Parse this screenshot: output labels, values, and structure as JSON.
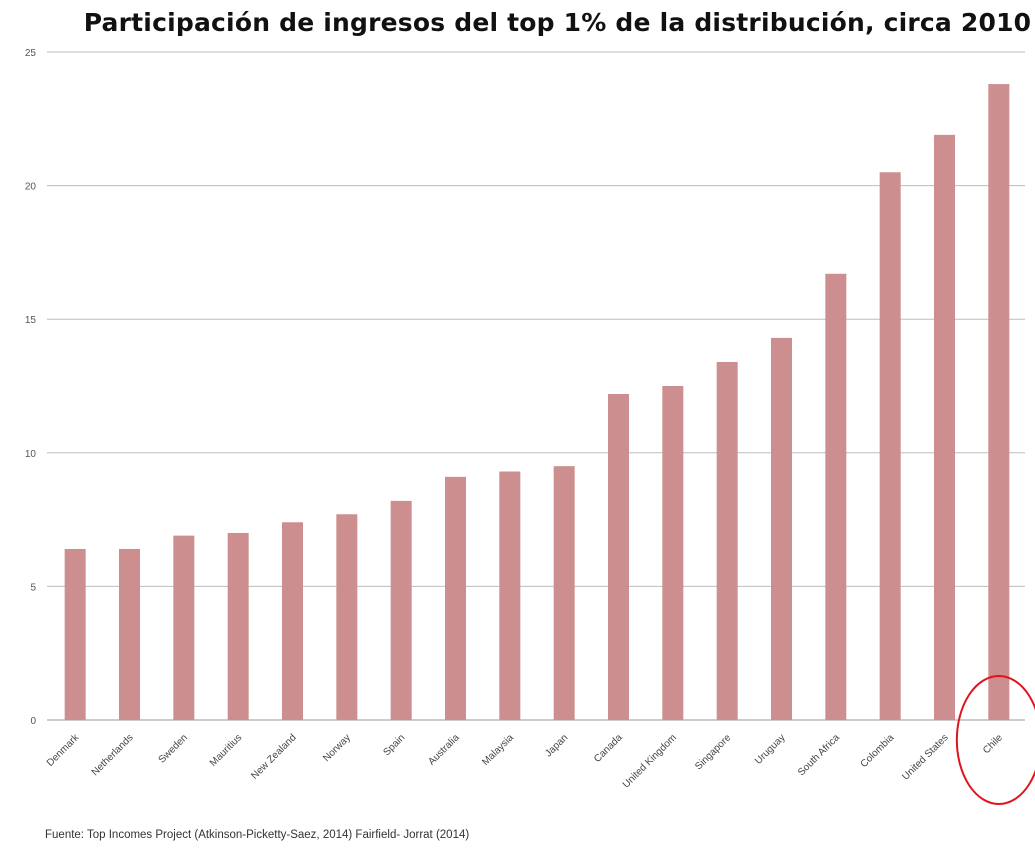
{
  "chart_data": {
    "type": "bar",
    "title": "Participación de ingresos del top 1% de la distribución, circa 2010",
    "xlabel": "",
    "ylabel": "",
    "ylim": [
      0,
      25
    ],
    "yticks": [
      0,
      5,
      10,
      15,
      20,
      25
    ],
    "grid": true,
    "legend": "none",
    "categories": [
      "Denmark",
      "Netherlands",
      "Sweden",
      "Mauritius",
      "New Zealand",
      "Norway",
      "Spain",
      "Australia",
      "Malaysia",
      "Japan",
      "Canada",
      "United Kingdom",
      "Singapore",
      "Uruguay",
      "South Africa",
      "Colombia",
      "United States",
      "Chile"
    ],
    "values": [
      6.4,
      6.4,
      6.9,
      7.0,
      7.4,
      7.7,
      8.2,
      9.1,
      9.3,
      9.5,
      12.2,
      12.5,
      13.4,
      14.3,
      16.7,
      20.5,
      21.9,
      23.8
    ],
    "bar_color": "#cc8e8e",
    "highlight": {
      "category": "Chile",
      "color": "#e0141c"
    },
    "source": "Fuente: Top Incomes Project (Atkinson-Picketty-Saez, 2014) Fairfield- Jorrat (2014)"
  }
}
